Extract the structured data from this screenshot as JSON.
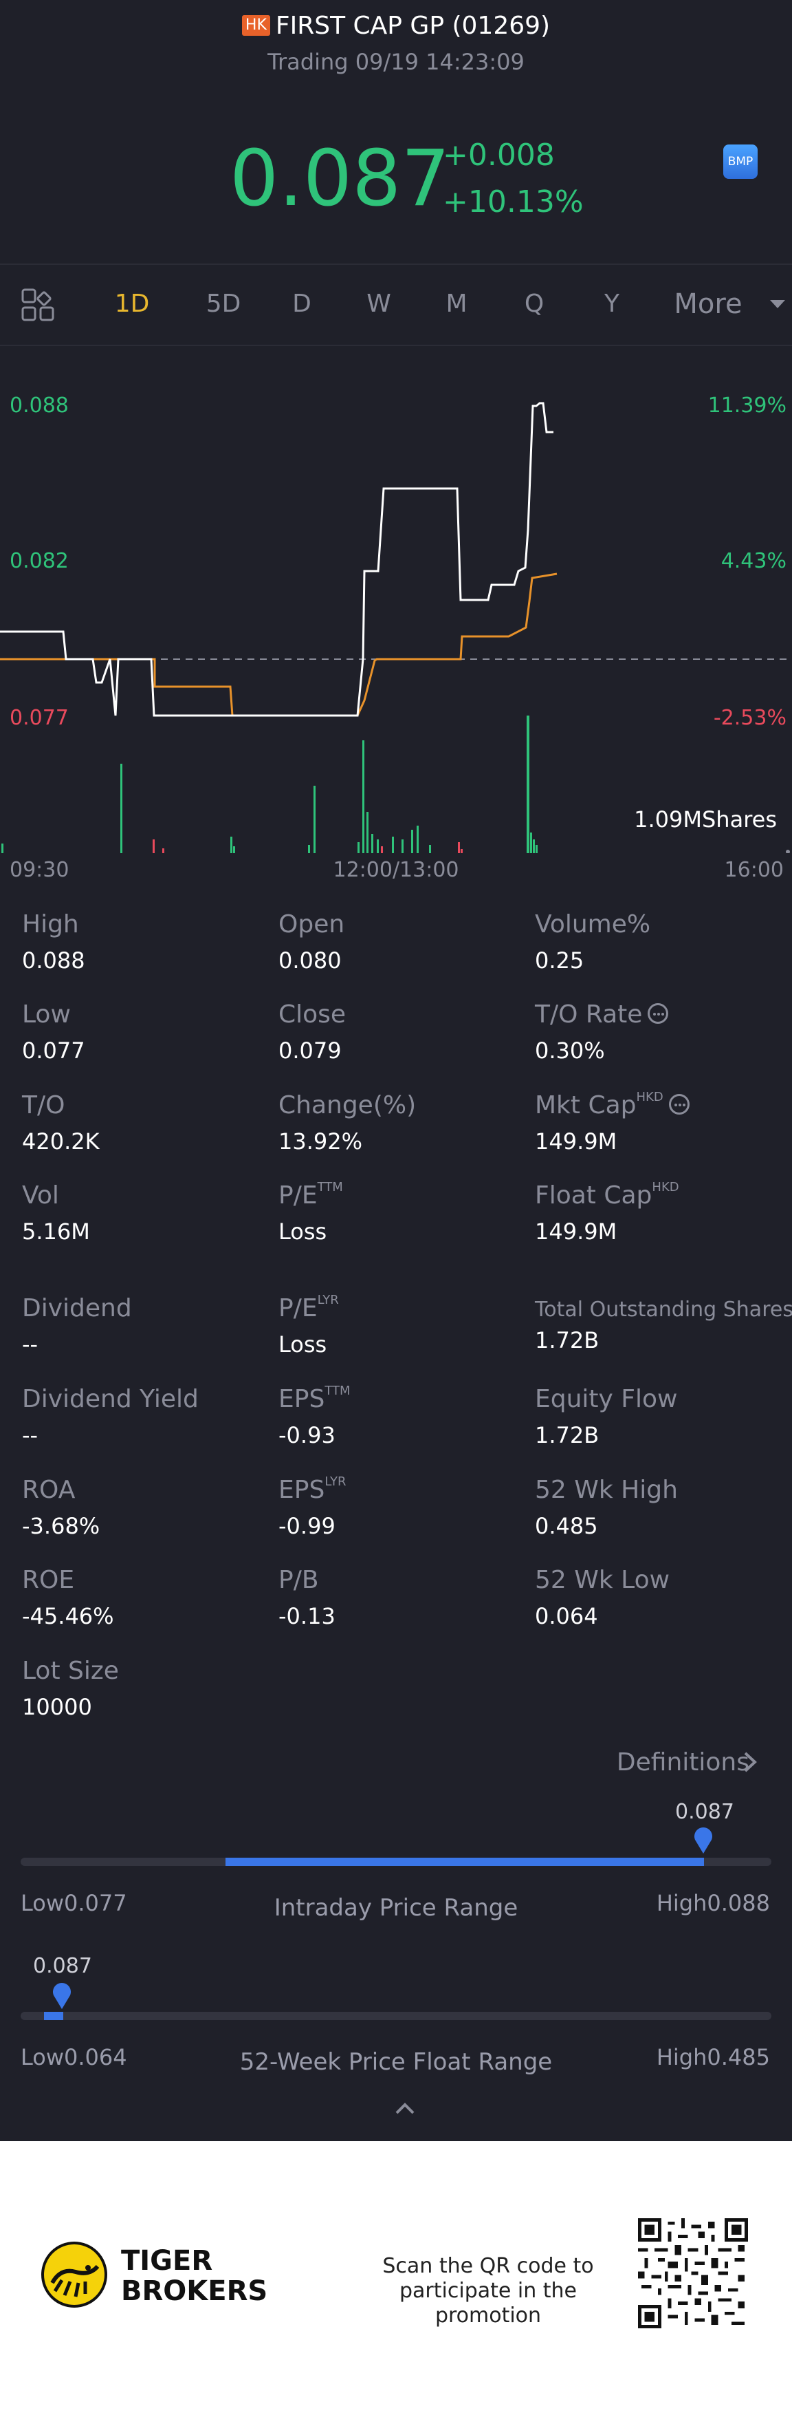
{
  "header": {
    "market_badge": "HK",
    "title": "FIRST CAP GP (01269)",
    "status": "Trading 09/19 14:23:09"
  },
  "quote": {
    "price": "0.087",
    "change": "+0.008",
    "change_pct": "+10.13%",
    "badge": "BMP"
  },
  "tabs": [
    "1D",
    "5D",
    "D",
    "W",
    "M",
    "Q",
    "Y",
    "More"
  ],
  "active_tab": "1D",
  "chart": {
    "y_left": [
      "0.088",
      "0.082",
      "0.077"
    ],
    "y_right": [
      "11.39%",
      "4.43%",
      "-2.53%"
    ],
    "x_ticks": [
      "09:30",
      "12:00/13:00",
      "16:00"
    ],
    "volume_label": "1.09MShares"
  },
  "chart_data": {
    "type": "line",
    "x_ticks": [
      "09:30",
      "12:00/13:00",
      "16:00"
    ],
    "price_axis": [
      0.077,
      0.082,
      0.088
    ],
    "pct_axis": [
      "-2.53%",
      "4.43%",
      "11.39%"
    ],
    "prev_close": 0.079,
    "series": [
      {
        "color": "#ffffff"
      },
      {
        "color": "#e8922a"
      }
    ],
    "volume_total": "1.09MShares"
  },
  "stats": {
    "col1": [
      {
        "label": "High",
        "value": "0.088"
      },
      {
        "label": "Low",
        "value": "0.077"
      },
      {
        "label": "T/O",
        "value": "420.2K"
      },
      {
        "label": "Vol",
        "value": "5.16M"
      },
      {
        "label": "Dividend",
        "value": "--"
      },
      {
        "label": "Dividend Yield",
        "value": "--"
      },
      {
        "label": "ROA",
        "value": "-3.68%"
      },
      {
        "label": "ROE",
        "value": "-45.46%"
      },
      {
        "label": "Lot Size",
        "value": "10000"
      }
    ],
    "col2": [
      {
        "label": "Open",
        "value": "0.080"
      },
      {
        "label": "Close",
        "value": "0.079"
      },
      {
        "label": "Change(%)",
        "value": "13.92%"
      },
      {
        "label": "P/E",
        "sup": "TTM",
        "value": "Loss"
      },
      {
        "label": "P/E",
        "sup": "LYR",
        "value": "Loss"
      },
      {
        "label": "EPS",
        "sup": "TTM",
        "value": "-0.93"
      },
      {
        "label": "EPS",
        "sup": "LYR",
        "value": "-0.99"
      },
      {
        "label": "P/B",
        "value": "-0.13"
      }
    ],
    "col3": [
      {
        "label": "Volume%",
        "value": "0.25"
      },
      {
        "label": "T/O Rate",
        "value": "0.30%"
      },
      {
        "label": "Mkt Cap",
        "sup": "HKD",
        "value": "149.9M"
      },
      {
        "label": "Float Cap",
        "sup": "HKD",
        "value": "149.9M"
      },
      {
        "label": "Total Outstanding Shares",
        "value": "1.72B"
      },
      {
        "label": "Equity Flow",
        "value": "1.72B"
      },
      {
        "label": "52 Wk High",
        "value": "0.485"
      },
      {
        "label": "52 Wk Low",
        "value": "0.064"
      }
    ]
  },
  "definitions_link": "Definitions",
  "intraday_range": {
    "title": "Intraday Price Range",
    "low_label": "Low",
    "low": "0.077",
    "high_label": "High",
    "high": "0.088",
    "current": "0.087",
    "current_position": 0.909
  },
  "week52_range": {
    "title": "52-Week Price Float Range",
    "low_label": "Low",
    "low": "0.064",
    "high_label": "High",
    "high": "0.485",
    "current": "0.087",
    "current_position": 0.055
  },
  "footer": {
    "brand_line1": "TIGER",
    "brand_line2": "BROKERS",
    "promo_line1": "Scan the QR code to",
    "promo_line2": "participate in the promotion"
  },
  "colors": {
    "background": "#1f2029",
    "up": "#2fc37a",
    "down": "#e84a5c",
    "accent": "#e8b72e",
    "range_fill": "#3a76e8"
  }
}
